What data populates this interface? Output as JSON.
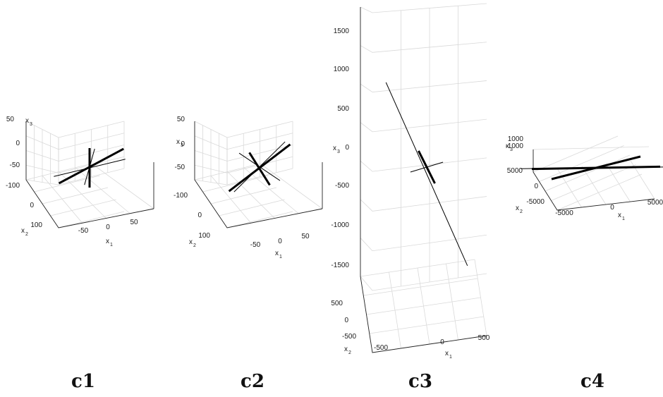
{
  "chart_data": [
    {
      "type": "3d-line",
      "panel_label": "c1",
      "xlabel": "x",
      "xlabel_sub": "1",
      "ylabel": "x",
      "ylabel_sub": "2",
      "zlabel": "x",
      "zlabel_sub": "3",
      "x_ticks": [
        "-50",
        "0",
        "50"
      ],
      "y_ticks": [
        "-100",
        "0",
        "100"
      ],
      "z_ticks": [
        "50",
        "0",
        "-50"
      ],
      "xlim": [
        -90,
        90
      ],
      "ylim": [
        -130,
        130
      ],
      "zlim": [
        -60,
        60
      ],
      "grid": true,
      "lines": [
        {
          "weight": "thick",
          "from": [
            -60,
            0,
            -20
          ],
          "to": [
            70,
            10,
            25
          ]
        },
        {
          "weight": "thick",
          "from": [
            0,
            0,
            -50
          ],
          "to": [
            0,
            0,
            50
          ]
        },
        {
          "weight": "thin",
          "from": [
            -50,
            60,
            -10
          ],
          "to": [
            50,
            -60,
            10
          ]
        },
        {
          "weight": "thin",
          "from": [
            -10,
            0,
            -40
          ],
          "to": [
            10,
            0,
            45
          ]
        }
      ]
    },
    {
      "type": "3d-line",
      "panel_label": "c2",
      "xlabel": "x",
      "xlabel_sub": "1",
      "ylabel": "x",
      "ylabel_sub": "2",
      "zlabel": "x",
      "zlabel_sub": "3",
      "x_ticks": [
        "-50",
        "0",
        "50"
      ],
      "y_ticks": [
        "-100",
        "0",
        "100"
      ],
      "z_ticks": [
        "50",
        "0",
        "-50"
      ],
      "xlim": [
        -90,
        90
      ],
      "ylim": [
        -130,
        130
      ],
      "zlim": [
        -60,
        60
      ],
      "grid": true,
      "lines": [
        {
          "weight": "thick",
          "from": [
            -60,
            0,
            -40
          ],
          "to": [
            60,
            0,
            40
          ]
        },
        {
          "weight": "thick",
          "from": [
            -20,
            0,
            45
          ],
          "to": [
            20,
            0,
            -50
          ]
        },
        {
          "weight": "thin",
          "from": [
            -40,
            0,
            50
          ],
          "to": [
            40,
            0,
            -45
          ]
        },
        {
          "weight": "thin",
          "from": [
            -50,
            0,
            -45
          ],
          "to": [
            50,
            0,
            50
          ]
        }
      ]
    },
    {
      "type": "3d-line",
      "panel_label": "c3",
      "xlabel": "x",
      "xlabel_sub": "1",
      "ylabel": "x",
      "ylabel_sub": "2",
      "zlabel": "x",
      "zlabel_sub": "3",
      "x_ticks": [
        "-500",
        "0",
        "500"
      ],
      "y_ticks": [
        "500",
        "0",
        "-500"
      ],
      "z_ticks": [
        "1500",
        "1000",
        "500",
        "0",
        "-500",
        "-1000",
        "-1500"
      ],
      "xlim": [
        -600,
        600
      ],
      "ylim": [
        -600,
        600
      ],
      "zlim": [
        -1800,
        1800
      ],
      "grid": true,
      "lines": [
        {
          "weight": "thin",
          "from": [
            -300,
            0,
            1300
          ],
          "to": [
            300,
            0,
            -1500
          ]
        },
        {
          "weight": "thick",
          "from": [
            -60,
            0,
            250
          ],
          "to": [
            60,
            0,
            -250
          ]
        },
        {
          "weight": "thin",
          "from": [
            -120,
            0,
            -40
          ],
          "to": [
            120,
            0,
            40
          ]
        }
      ]
    },
    {
      "type": "3d-line",
      "panel_label": "c4",
      "xlabel": "x",
      "xlabel_sub": "1",
      "ylabel": "x",
      "ylabel_sub": "2",
      "zlabel": "x",
      "zlabel_sub": "3",
      "x_ticks": [
        "-5000",
        "0",
        "5000"
      ],
      "y_ticks": [
        "5000",
        "0",
        "-5000"
      ],
      "z_ticks": [
        "1000",
        "-1000"
      ],
      "xlim": [
        -7000,
        7000
      ],
      "ylim": [
        -7000,
        7000
      ],
      "zlim": [
        -1500,
        1500
      ],
      "grid": true,
      "lines": [
        {
          "weight": "thick",
          "from": [
            -6000,
            2000,
            0
          ],
          "to": [
            6000,
            -2000,
            0
          ]
        },
        {
          "weight": "thick",
          "from": [
            -5000,
            -2000,
            0
          ],
          "to": [
            5000,
            2000,
            0
          ]
        },
        {
          "weight": "thin",
          "from": [
            -7000,
            2500,
            0
          ],
          "to": [
            7000,
            -2500,
            0
          ]
        }
      ]
    }
  ]
}
